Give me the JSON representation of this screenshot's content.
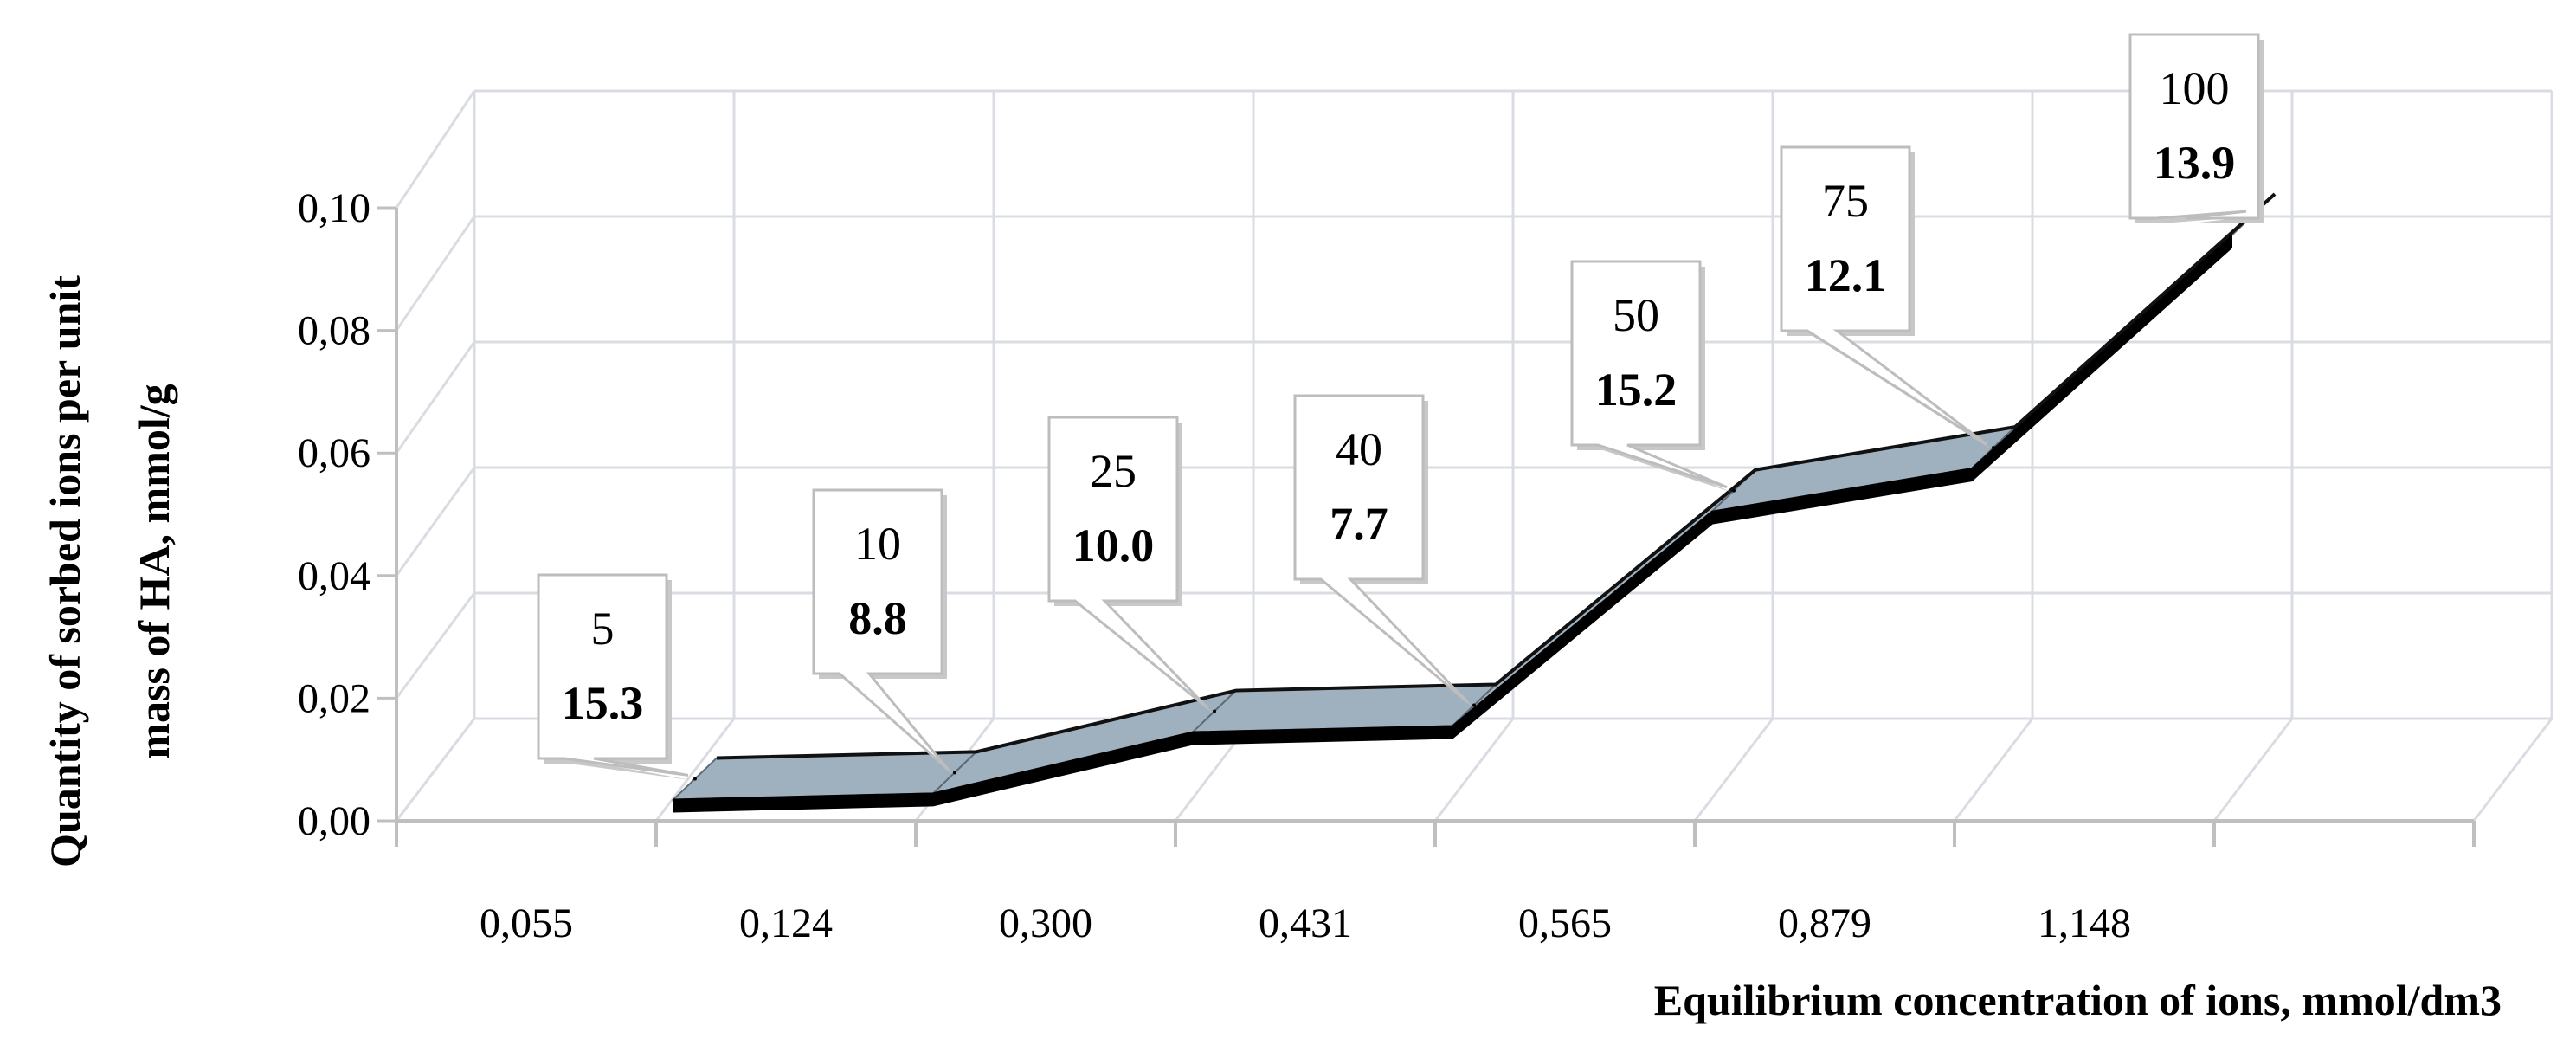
{
  "chart_data": {
    "type": "area",
    "style": "3d-ribbon",
    "title": "",
    "xlabel": "Equilibrium concentration of ions, mmol/dm3",
    "ylabel_lines": [
      "Quantity of sorbed ions per unit",
      "mass of HA, mmol/g"
    ],
    "categories": [
      "0,055",
      "0,124",
      "0,300",
      "0,431",
      "0,565",
      "0,879",
      "1,148"
    ],
    "values": [
      0.007,
      0.008,
      0.018,
      0.019,
      0.054,
      0.061,
      0.099
    ],
    "y_ticks": [
      "0,00",
      "0,02",
      "0,04",
      "0,06",
      "0,08",
      "0,10"
    ],
    "ylim": [
      0,
      0.1
    ],
    "grid": true,
    "legend": "none",
    "data_labels": [
      {
        "top": "5",
        "bottom": "15.3"
      },
      {
        "top": "10",
        "bottom": "8.8"
      },
      {
        "top": "25",
        "bottom": "10.0"
      },
      {
        "top": "40",
        "bottom": "7.7"
      },
      {
        "top": "50",
        "bottom": "15.2"
      },
      {
        "top": "75",
        "bottom": "12.1"
      },
      {
        "top": "100",
        "bottom": "13.9"
      }
    ],
    "colors": {
      "ribbon_face": "#9fb0bf",
      "ribbon_edge": "#000000",
      "grid": "#d9dce3",
      "axis": "#bfbfbf"
    }
  }
}
